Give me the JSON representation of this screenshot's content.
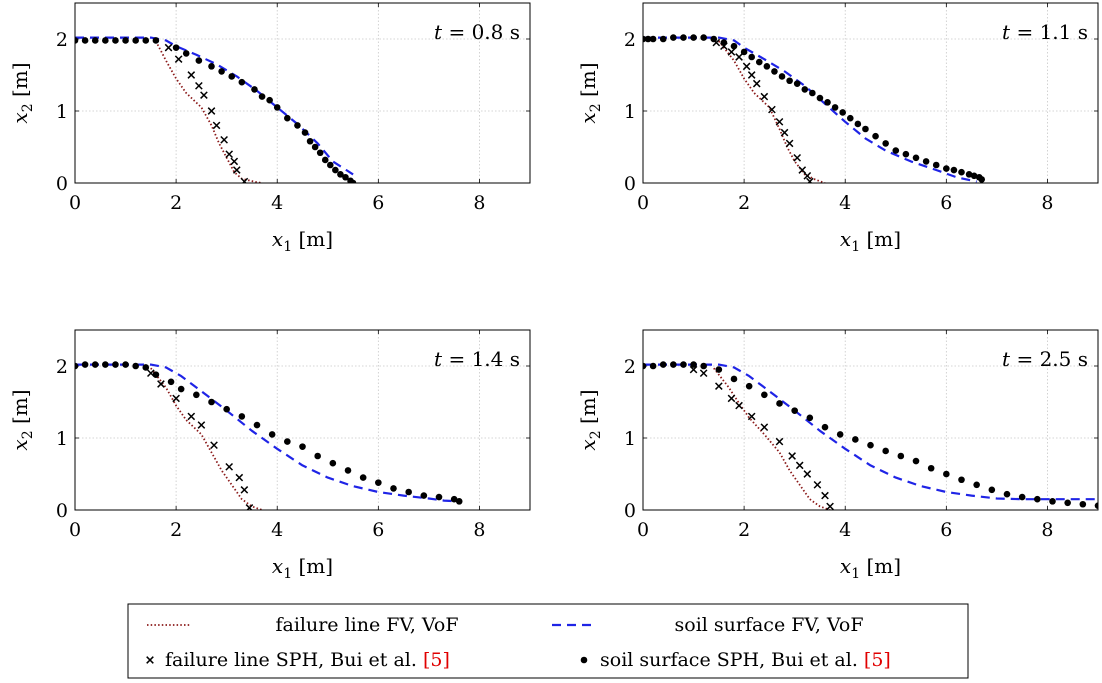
{
  "chart_data": [
    {
      "type": "line",
      "annotation": {
        "var": "t",
        "eq": " = ",
        "value": "0.8 s"
      },
      "xlabel": {
        "var": "x",
        "sub": "1",
        "unit": " [m]"
      },
      "ylabel": {
        "var": "x",
        "sub": "2",
        "unit": " [m]"
      },
      "xlim": [
        0,
        9
      ],
      "ylim": [
        0,
        2.5
      ],
      "xticks": [
        0,
        2,
        4,
        6,
        8
      ],
      "yticks": [
        0,
        1,
        2
      ],
      "grid": true,
      "series": [
        {
          "key": "failure_fv",
          "x": [
            1.6,
            1.8,
            2.0,
            2.2,
            2.5,
            2.7,
            2.85,
            3.0,
            3.15,
            3.3,
            3.6,
            3.7
          ],
          "y": [
            1.97,
            1.7,
            1.45,
            1.25,
            1.05,
            0.8,
            0.55,
            0.35,
            0.15,
            0.06,
            0.01,
            0.0
          ]
        },
        {
          "key": "surface_fv",
          "x": [
            0,
            1.5,
            1.8,
            2.0,
            2.4,
            2.8,
            3.2,
            3.6,
            4.0,
            4.4,
            4.8,
            5.1,
            5.5
          ],
          "y": [
            2.02,
            2.02,
            1.98,
            1.9,
            1.78,
            1.65,
            1.48,
            1.28,
            1.05,
            0.82,
            0.55,
            0.3,
            0.12
          ]
        },
        {
          "key": "failure_sph",
          "x": [
            1.85,
            2.05,
            2.3,
            2.45,
            2.55,
            2.7,
            2.8,
            2.95,
            3.05,
            3.15,
            3.2,
            3.35
          ],
          "y": [
            1.88,
            1.72,
            1.5,
            1.35,
            1.22,
            1.0,
            0.8,
            0.6,
            0.4,
            0.3,
            0.18,
            0.02
          ]
        },
        {
          "key": "surface_sph",
          "x": [
            0.0,
            0.2,
            0.4,
            0.6,
            0.8,
            1.0,
            1.2,
            1.4,
            1.6,
            2.0,
            2.2,
            2.45,
            2.7,
            2.9,
            3.1,
            3.3,
            3.55,
            3.7,
            3.85,
            4.0,
            4.2,
            4.4,
            4.55,
            4.65,
            4.75,
            4.85,
            4.95,
            5.05,
            5.15,
            5.25,
            5.35,
            5.45,
            5.5
          ],
          "y": [
            1.98,
            1.98,
            1.98,
            1.98,
            1.98,
            1.98,
            1.98,
            1.98,
            1.98,
            1.88,
            1.8,
            1.7,
            1.62,
            1.55,
            1.48,
            1.4,
            1.3,
            1.2,
            1.15,
            1.05,
            0.9,
            0.8,
            0.7,
            0.58,
            0.5,
            0.42,
            0.32,
            0.25,
            0.18,
            0.12,
            0.08,
            0.03,
            0.0
          ]
        }
      ]
    },
    {
      "type": "line",
      "annotation": {
        "var": "t",
        "eq": " = ",
        "value": "1.1 s"
      },
      "xlabel": {
        "var": "x",
        "sub": "1",
        "unit": " [m]"
      },
      "ylabel": {
        "var": "x",
        "sub": "2",
        "unit": " [m]"
      },
      "xlim": [
        0,
        9
      ],
      "ylim": [
        0,
        2.5
      ],
      "xticks": [
        0,
        2,
        4,
        6,
        8
      ],
      "yticks": [
        0,
        1,
        2
      ],
      "grid": true,
      "series": [
        {
          "key": "failure_fv",
          "x": [
            1.5,
            1.8,
            2.0,
            2.2,
            2.5,
            2.7,
            2.85,
            3.0,
            3.2,
            3.4,
            3.6
          ],
          "y": [
            1.97,
            1.7,
            1.45,
            1.25,
            1.05,
            0.75,
            0.5,
            0.3,
            0.12,
            0.05,
            0.0
          ]
        },
        {
          "key": "surface_fv",
          "x": [
            0,
            1.5,
            1.8,
            2.0,
            2.4,
            2.8,
            3.2,
            3.6,
            4.0,
            4.4,
            4.8,
            5.3,
            5.8,
            6.2,
            6.6
          ],
          "y": [
            2.02,
            2.02,
            1.98,
            1.88,
            1.72,
            1.55,
            1.35,
            1.1,
            0.85,
            0.62,
            0.45,
            0.3,
            0.18,
            0.08,
            0.02
          ]
        },
        {
          "key": "failure_sph",
          "x": [
            1.45,
            1.6,
            1.75,
            1.9,
            2.05,
            2.15,
            2.25,
            2.4,
            2.55,
            2.7,
            2.8,
            2.9,
            3.05,
            3.15,
            3.25,
            3.3
          ],
          "y": [
            1.95,
            1.9,
            1.82,
            1.75,
            1.62,
            1.5,
            1.38,
            1.2,
            1.02,
            0.85,
            0.7,
            0.55,
            0.35,
            0.18,
            0.1,
            0.02
          ]
        },
        {
          "key": "surface_sph",
          "x": [
            0.0,
            0.1,
            0.2,
            0.4,
            0.6,
            0.8,
            1.0,
            1.2,
            1.4,
            1.6,
            1.8,
            2.0,
            2.15,
            2.3,
            2.45,
            2.6,
            2.75,
            2.9,
            3.05,
            3.2,
            3.35,
            3.5,
            3.65,
            3.8,
            3.95,
            4.1,
            4.25,
            4.4,
            4.6,
            4.8,
            5.0,
            5.2,
            5.4,
            5.6,
            5.8,
            6.0,
            6.15,
            6.3,
            6.45,
            6.55,
            6.65,
            6.7
          ],
          "y": [
            2.0,
            2.0,
            2.0,
            2.0,
            2.02,
            2.02,
            2.02,
            2.02,
            2.0,
            1.95,
            1.9,
            1.82,
            1.75,
            1.68,
            1.62,
            1.55,
            1.48,
            1.42,
            1.38,
            1.3,
            1.25,
            1.18,
            1.12,
            1.05,
            0.98,
            0.9,
            0.82,
            0.75,
            0.65,
            0.55,
            0.45,
            0.4,
            0.35,
            0.3,
            0.25,
            0.2,
            0.18,
            0.15,
            0.12,
            0.1,
            0.08,
            0.05
          ]
        }
      ]
    },
    {
      "type": "line",
      "annotation": {
        "var": "t",
        "eq": " = ",
        "value": "1.4 s"
      },
      "xlabel": {
        "var": "x",
        "sub": "1",
        "unit": " [m]"
      },
      "ylabel": {
        "var": "x",
        "sub": "2",
        "unit": " [m]"
      },
      "xlim": [
        0,
        9
      ],
      "ylim": [
        0,
        2.5
      ],
      "xticks": [
        0,
        2,
        4,
        6,
        8
      ],
      "yticks": [
        0,
        1,
        2
      ],
      "grid": true,
      "series": [
        {
          "key": "failure_fv",
          "x": [
            1.5,
            1.8,
            2.0,
            2.2,
            2.5,
            2.7,
            2.9,
            3.1,
            3.3,
            3.5,
            3.7
          ],
          "y": [
            1.97,
            1.7,
            1.45,
            1.25,
            1.05,
            0.8,
            0.55,
            0.35,
            0.15,
            0.05,
            0.0
          ]
        },
        {
          "key": "surface_fv",
          "x": [
            0,
            1.5,
            1.8,
            2.1,
            2.5,
            3.0,
            3.5,
            4.0,
            4.5,
            5.0,
            5.5,
            6.0,
            6.5,
            7.0,
            7.3,
            7.6
          ],
          "y": [
            2.02,
            2.02,
            1.98,
            1.86,
            1.65,
            1.38,
            1.1,
            0.85,
            0.62,
            0.45,
            0.33,
            0.25,
            0.2,
            0.16,
            0.13,
            0.12
          ]
        },
        {
          "key": "failure_sph",
          "x": [
            1.5,
            1.7,
            2.0,
            2.3,
            2.5,
            2.75,
            3.05,
            3.25,
            3.35,
            3.45
          ],
          "y": [
            1.9,
            1.75,
            1.55,
            1.3,
            1.18,
            0.9,
            0.6,
            0.45,
            0.28,
            0.03
          ]
        },
        {
          "key": "surface_sph",
          "x": [
            0.0,
            0.2,
            0.4,
            0.6,
            0.8,
            1.0,
            1.2,
            1.4,
            1.6,
            1.9,
            2.1,
            2.4,
            2.7,
            3.0,
            3.3,
            3.6,
            3.9,
            4.2,
            4.5,
            4.8,
            5.1,
            5.4,
            5.7,
            6.0,
            6.3,
            6.6,
            6.9,
            7.2,
            7.5,
            7.6
          ],
          "y": [
            2.0,
            2.02,
            2.02,
            2.02,
            2.02,
            2.02,
            2.0,
            1.98,
            1.88,
            1.78,
            1.68,
            1.6,
            1.5,
            1.4,
            1.3,
            1.18,
            1.05,
            0.95,
            0.88,
            0.75,
            0.65,
            0.55,
            0.45,
            0.38,
            0.3,
            0.25,
            0.2,
            0.18,
            0.15,
            0.12
          ]
        }
      ]
    },
    {
      "type": "line",
      "annotation": {
        "var": "t",
        "eq": " = ",
        "value": "2.5 s"
      },
      "xlabel": {
        "var": "x",
        "sub": "1",
        "unit": " [m]"
      },
      "ylabel": {
        "var": "x",
        "sub": "2",
        "unit": " [m]"
      },
      "xlim": [
        0,
        9
      ],
      "ylim": [
        0,
        2.5
      ],
      "xticks": [
        0,
        2,
        4,
        6,
        8
      ],
      "yticks": [
        0,
        1,
        2
      ],
      "grid": true,
      "series": [
        {
          "key": "failure_fv",
          "x": [
            1.4,
            1.7,
            1.9,
            2.1,
            2.4,
            2.7,
            2.9,
            3.1,
            3.3,
            3.5,
            3.7
          ],
          "y": [
            1.97,
            1.7,
            1.48,
            1.28,
            1.05,
            0.8,
            0.55,
            0.35,
            0.15,
            0.05,
            0.0
          ]
        },
        {
          "key": "surface_fv",
          "x": [
            0,
            1.5,
            1.8,
            2.1,
            2.5,
            3.0,
            3.5,
            4.0,
            4.5,
            5.0,
            5.5,
            6.0,
            6.5,
            7.0,
            7.5,
            8.0,
            8.5,
            9.0
          ],
          "y": [
            2.02,
            2.02,
            1.98,
            1.86,
            1.65,
            1.38,
            1.1,
            0.85,
            0.62,
            0.45,
            0.33,
            0.25,
            0.2,
            0.16,
            0.15,
            0.15,
            0.15,
            0.15
          ]
        },
        {
          "key": "failure_sph",
          "x": [
            1.0,
            1.2,
            1.5,
            1.75,
            1.9,
            2.15,
            2.4,
            2.7,
            2.95,
            3.1,
            3.25,
            3.45,
            3.6,
            3.7
          ],
          "y": [
            1.95,
            1.9,
            1.72,
            1.55,
            1.45,
            1.3,
            1.15,
            0.95,
            0.75,
            0.62,
            0.5,
            0.35,
            0.2,
            0.05
          ]
        },
        {
          "key": "surface_sph",
          "x": [
            0.0,
            0.2,
            0.4,
            0.6,
            0.8,
            1.0,
            1.2,
            1.5,
            1.8,
            2.1,
            2.4,
            2.7,
            3.0,
            3.3,
            3.6,
            3.9,
            4.2,
            4.5,
            4.8,
            5.1,
            5.4,
            5.7,
            6.0,
            6.3,
            6.6,
            6.9,
            7.2,
            7.5,
            7.8,
            8.1,
            8.4,
            8.7,
            9.0
          ],
          "y": [
            2.0,
            2.0,
            2.02,
            2.02,
            2.02,
            2.02,
            2.0,
            1.95,
            1.82,
            1.72,
            1.6,
            1.48,
            1.38,
            1.28,
            1.15,
            1.05,
            0.98,
            0.9,
            0.82,
            0.75,
            0.68,
            0.58,
            0.5,
            0.42,
            0.35,
            0.28,
            0.22,
            0.18,
            0.15,
            0.12,
            0.1,
            0.08,
            0.06
          ]
        }
      ]
    }
  ],
  "legend": {
    "entries": [
      {
        "key": "failure_fv",
        "label": "failure line FV, VoF",
        "ref": ""
      },
      {
        "key": "surface_fv",
        "label": "soil surface FV, VoF",
        "ref": ""
      },
      {
        "key": "failure_sph",
        "label": "failure line SPH, Bui et al. ",
        "ref": "[5]"
      },
      {
        "key": "surface_sph",
        "label": "soil surface SPH, Bui et al. ",
        "ref": "[5]"
      }
    ]
  },
  "styles": {
    "failure_fv": {
      "color": "#8b1a1a",
      "dash": "1.5,2.2",
      "width": 1.8
    },
    "surface_fv": {
      "color": "#1f24e6",
      "dash": "9,6",
      "width": 2.2
    },
    "failure_sph": {
      "color": "#000000",
      "marker": "x"
    },
    "surface_sph": {
      "color": "#000000",
      "marker": "dot"
    }
  }
}
